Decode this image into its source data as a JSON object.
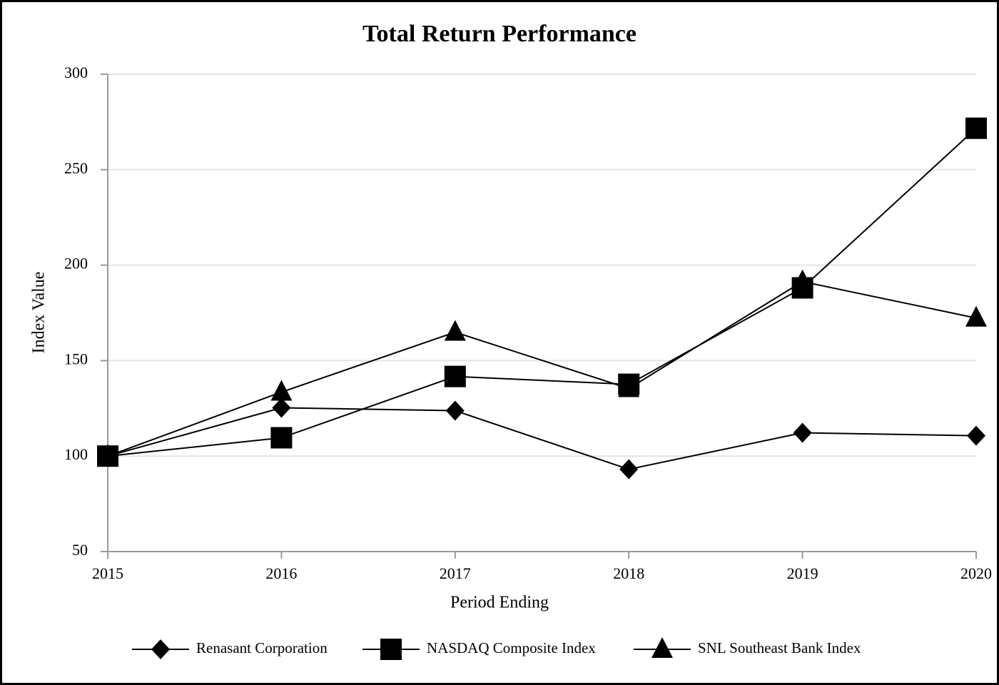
{
  "chart_data": {
    "type": "line",
    "title": "Total Return Performance",
    "x_label": "Period Ending",
    "y_label": "Index Value",
    "x": [
      2015,
      2016,
      2017,
      2018,
      2019,
      2020
    ],
    "xlim": [
      2015,
      2020
    ],
    "xticks": [
      2015,
      2016,
      2017,
      2018,
      2019,
      2020
    ],
    "ylim": [
      50,
      300
    ],
    "yticks": [
      50,
      100,
      150,
      200,
      250,
      300
    ],
    "grid": true,
    "legend": "bottom",
    "series": [
      {
        "name": "Renasant Corporation",
        "color": "#000000",
        "marker": "diamond",
        "values": [
          100,
          125.3,
          123.8,
          93.1,
          112.2,
          110.7
        ]
      },
      {
        "name": "NASDAQ Composite Index",
        "color": "#000000",
        "marker": "square",
        "values": [
          100,
          109.6,
          141.7,
          137.6,
          188.1,
          271.7
        ]
      },
      {
        "name": "SNL Southeast Bank Index",
        "color": "#000000",
        "marker": "triangle",
        "values": [
          100,
          133.5,
          164.9,
          135.4,
          191.4,
          172.3
        ]
      }
    ]
  }
}
